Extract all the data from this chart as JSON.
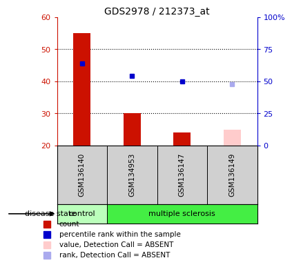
{
  "title": "GDS2978 / 212373_at",
  "samples": [
    "GSM136140",
    "GSM134953",
    "GSM136147",
    "GSM136149"
  ],
  "bar_values": [
    55,
    30,
    24,
    25
  ],
  "bar_colors": [
    "#cc1100",
    "#cc1100",
    "#cc1100",
    "#ffcccc"
  ],
  "bar_bottom": 20,
  "rank_values": [
    64,
    54,
    50,
    48
  ],
  "rank_colors": [
    "#0000cc",
    "#0000cc",
    "#0000cc",
    "#aaaaee"
  ],
  "ylim_left": [
    20,
    60
  ],
  "ylim_right": [
    0,
    100
  ],
  "yticks_left": [
    20,
    30,
    40,
    50,
    60
  ],
  "yticks_right": [
    0,
    25,
    50,
    75,
    100
  ],
  "right_tick_labels": [
    "0",
    "25",
    "50",
    "75",
    "100%"
  ],
  "grid_values": [
    30,
    40,
    50
  ],
  "ctrl_color": "#bbffbb",
  "ms_color": "#44ee44",
  "legend_items": [
    {
      "color": "#cc1100",
      "label": "count"
    },
    {
      "color": "#0000cc",
      "label": "percentile rank within the sample"
    },
    {
      "color": "#ffcccc",
      "label": "value, Detection Call = ABSENT"
    },
    {
      "color": "#aaaaee",
      "label": "rank, Detection Call = ABSENT"
    }
  ],
  "bar_width": 0.35
}
